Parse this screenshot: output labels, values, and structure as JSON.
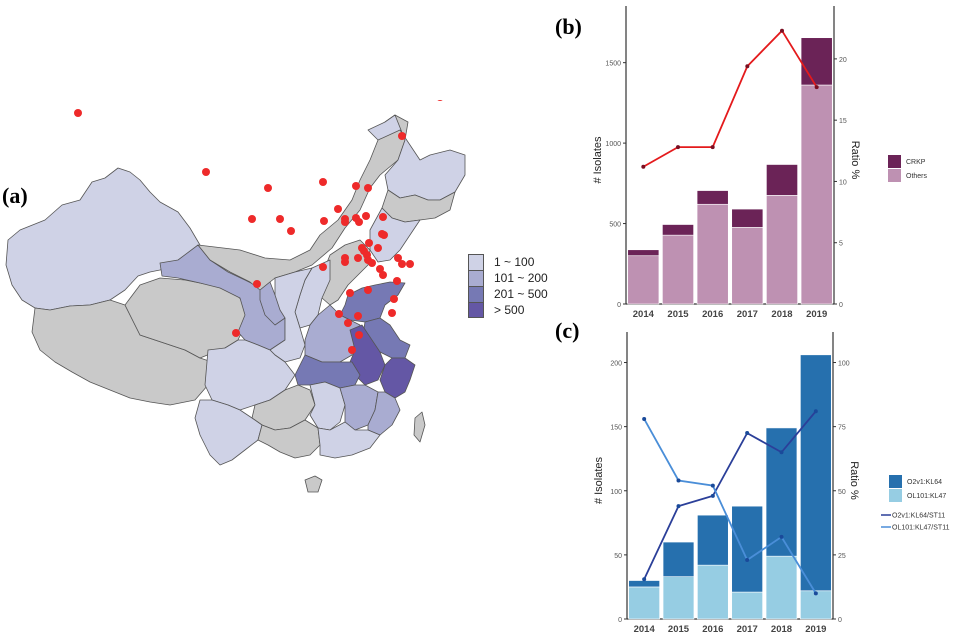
{
  "panels": {
    "a": "(a)",
    "b": "(b)",
    "c": "(c)"
  },
  "map": {
    "legend": [
      {
        "label": "1 ~ 100",
        "color": "#cfd2e6"
      },
      {
        "label": "101 ~ 200",
        "color": "#a9acd1"
      },
      {
        "label": "201 ~ 500",
        "color": "#7679b4"
      },
      {
        "label": "> 500",
        "color": "#6457a5"
      }
    ],
    "no_data_color": "#c9c9c9",
    "point_color": "#ee2a2a"
  },
  "chart_data": [
    {
      "id": "b",
      "type": "bar",
      "stacked": true,
      "categories": [
        "2014",
        "2015",
        "2016",
        "2017",
        "2018",
        "2019"
      ],
      "series": [
        {
          "name": "Others",
          "color": "#be91b2",
          "values": [
            300,
            428,
            620,
            476,
            675,
            1361
          ]
        },
        {
          "name": "CRKP",
          "color": "#6b2357",
          "values": [
            37,
            66,
            85,
            114,
            192,
            294
          ]
        }
      ],
      "line_series": [
        {
          "name": "Ratio",
          "color": "#e41a1c",
          "axis": "right",
          "values": [
            11.2,
            12.8,
            12.8,
            19.4,
            22.3,
            17.7
          ]
        }
      ],
      "xlabel": "",
      "ylabel": "# Isolates",
      "y2label": "Ratio %",
      "ylim": [
        0,
        1790
      ],
      "yticks": [
        0,
        500,
        1000,
        1500
      ],
      "y2lim": [
        0,
        23.5
      ],
      "y2ticks": [
        0,
        5,
        10,
        15,
        20
      ],
      "legend": [
        "CRKP",
        "Others"
      ],
      "legend_position": "right",
      "grid": false
    },
    {
      "id": "c",
      "type": "bar",
      "stacked": true,
      "categories": [
        "2014",
        "2015",
        "2016",
        "2017",
        "2018",
        "2019"
      ],
      "series": [
        {
          "name": "OL101:KL47",
          "color": "#96cde3",
          "values": [
            25,
            33,
            42,
            21,
            49,
            22
          ]
        },
        {
          "name": "O2v1:KL64",
          "color": "#2670ae",
          "values": [
            5,
            27,
            39,
            67,
            100,
            184
          ]
        }
      ],
      "line_series": [
        {
          "name": "O2v1:KL64/ST11",
          "color": "#2b3f99",
          "axis": "right",
          "values": [
            15.5,
            44,
            48,
            72.5,
            65,
            81
          ]
        },
        {
          "name": "OL101:KL47/ST11",
          "color": "#4a8ed8",
          "axis": "right",
          "values": [
            78,
            54,
            52,
            23,
            32,
            10
          ]
        }
      ],
      "xlabel": "",
      "ylabel": "# Isolates",
      "y2label": "Ratio %",
      "ylim": [
        0,
        216
      ],
      "yticks": [
        0,
        50,
        100,
        150,
        200
      ],
      "y2lim": [
        0,
        108
      ],
      "y2ticks": [
        0,
        25,
        50,
        75,
        100
      ],
      "legend": [
        "O2v1:KL64",
        "OL101:KL47",
        "O2v1:KL64/ST11",
        "OL101:KL47/ST11"
      ],
      "legend_position": "right",
      "grid": false
    }
  ]
}
